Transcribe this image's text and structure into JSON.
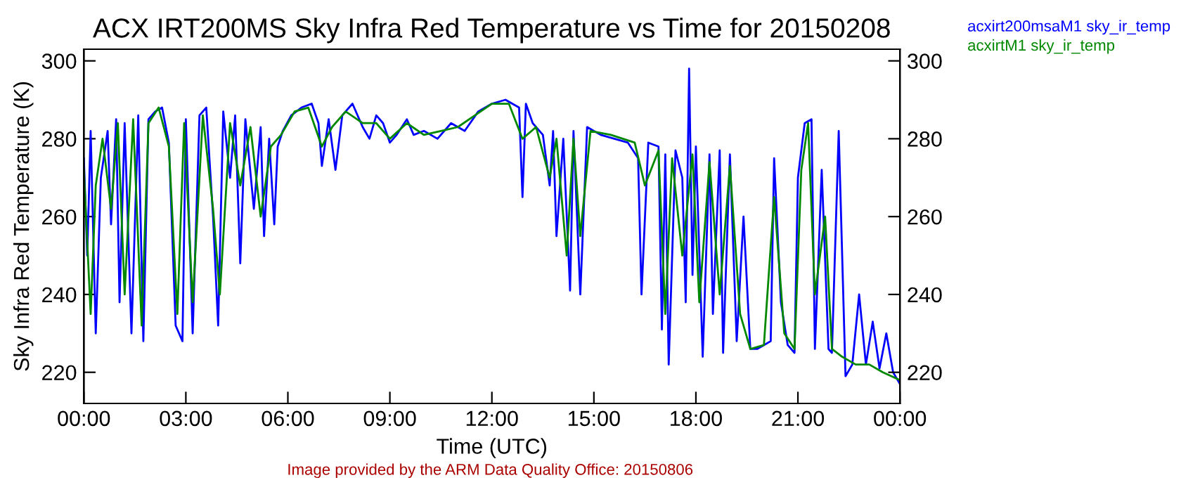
{
  "chart_data": {
    "type": "line",
    "title": "ACX IRT200MS Sky Infra Red Temperature vs Time for 20150208",
    "xlabel": "Time (UTC)",
    "ylabel": "Sky Infra Red Temperature (K)",
    "annotations": [
      "Image provided by the ARM Data Quality Office: 20150806"
    ],
    "xlim": [
      0,
      24
    ],
    "xticks": [
      {
        "value": 0,
        "label": "00:00"
      },
      {
        "value": 3,
        "label": "03:00"
      },
      {
        "value": 6,
        "label": "06:00"
      },
      {
        "value": 9,
        "label": "09:00"
      },
      {
        "value": 12,
        "label": "12:00"
      },
      {
        "value": 15,
        "label": "15:00"
      },
      {
        "value": 18,
        "label": "18:00"
      },
      {
        "value": 21,
        "label": "21:00"
      },
      {
        "value": 24,
        "label": "00:00"
      }
    ],
    "ylim": [
      212,
      303
    ],
    "yticks": [
      220,
      240,
      260,
      280,
      300
    ],
    "y2lim": [
      212,
      303
    ],
    "y2ticks": [
      220,
      240,
      260,
      280,
      300
    ],
    "grid": false,
    "legend": "top right",
    "series": [
      {
        "name": "acxirt200msaM1 sky_ir_temp",
        "color": "#0000ff",
        "x": [
          0.0,
          0.1,
          0.2,
          0.35,
          0.5,
          0.7,
          0.8,
          0.95,
          1.05,
          1.2,
          1.4,
          1.6,
          1.75,
          1.9,
          2.1,
          2.3,
          2.5,
          2.7,
          2.9,
          3.0,
          3.2,
          3.4,
          3.6,
          3.8,
          3.95,
          4.1,
          4.3,
          4.45,
          4.6,
          4.75,
          5.0,
          5.2,
          5.3,
          5.45,
          5.6,
          5.7,
          5.85,
          6.1,
          6.4,
          6.7,
          6.9,
          7.0,
          7.2,
          7.4,
          7.6,
          7.9,
          8.2,
          8.4,
          8.6,
          8.8,
          9.0,
          9.2,
          9.5,
          9.7,
          10.0,
          10.4,
          10.8,
          11.2,
          11.6,
          12.0,
          12.4,
          12.8,
          12.9,
          13.0,
          13.2,
          13.5,
          13.7,
          13.8,
          13.9,
          14.1,
          14.3,
          14.4,
          14.6,
          14.8,
          15.2,
          15.6,
          16.0,
          16.3,
          16.4,
          16.6,
          16.9,
          17.0,
          17.1,
          17.2,
          17.4,
          17.6,
          17.7,
          17.8,
          17.9,
          18.0,
          18.2,
          18.4,
          18.5,
          18.7,
          18.8,
          19.0,
          19.2,
          19.4,
          19.6,
          19.8,
          20.0,
          20.2,
          20.3,
          20.5,
          20.7,
          20.9,
          21.0,
          21.2,
          21.4,
          21.5,
          21.7,
          21.9,
          22.0,
          22.2,
          22.4,
          22.6,
          22.8,
          23.0,
          23.2,
          23.4,
          23.6,
          23.8,
          24.0
        ],
        "values": [
          275,
          250,
          282,
          230,
          270,
          282,
          258,
          285,
          238,
          284,
          230,
          286,
          228,
          285,
          287,
          288,
          279,
          232,
          228,
          285,
          230,
          286,
          288,
          260,
          232,
          287,
          270,
          286,
          248,
          285,
          262,
          283,
          255,
          280,
          258,
          278,
          282,
          286,
          288,
          289,
          284,
          273,
          285,
          272,
          286,
          289,
          283,
          280,
          286,
          284,
          279,
          281,
          285,
          281,
          282,
          280,
          284,
          282,
          287,
          289,
          290,
          288,
          265,
          289,
          284,
          281,
          268,
          282,
          255,
          280,
          241,
          282,
          240,
          283,
          281,
          280,
          279,
          275,
          240,
          279,
          278,
          231,
          276,
          222,
          277,
          270,
          238,
          298,
          245,
          278,
          224,
          276,
          235,
          277,
          225,
          276,
          228,
          260,
          226,
          226,
          227,
          228,
          275,
          238,
          227,
          225,
          270,
          284,
          285,
          226,
          272,
          226,
          225,
          282,
          219,
          222,
          240,
          222,
          233,
          221,
          230,
          220,
          217
        ]
      },
      {
        "name": "acxirtM1 sky_ir_temp",
        "color": "#008800",
        "x": [
          0.0,
          0.2,
          0.35,
          0.55,
          0.8,
          1.0,
          1.2,
          1.45,
          1.7,
          1.9,
          2.2,
          2.5,
          2.75,
          2.95,
          3.2,
          3.5,
          3.8,
          4.0,
          4.3,
          4.6,
          4.9,
          5.2,
          5.5,
          5.8,
          6.2,
          6.6,
          7.0,
          7.3,
          7.7,
          8.2,
          8.6,
          9.0,
          9.5,
          10.0,
          10.5,
          11.0,
          11.5,
          12.0,
          12.5,
          12.9,
          13.3,
          13.7,
          13.9,
          14.2,
          14.4,
          14.6,
          14.9,
          15.5,
          16.2,
          16.5,
          16.9,
          17.1,
          17.3,
          17.6,
          17.9,
          18.1,
          18.4,
          18.7,
          19.0,
          19.3,
          19.6,
          20.0,
          20.3,
          20.6,
          20.9,
          21.1,
          21.3,
          21.5,
          21.8,
          22.0,
          22.3,
          22.7,
          23.1,
          23.5,
          24.0
        ],
        "values": [
          272,
          235,
          268,
          280,
          262,
          284,
          240,
          285,
          232,
          284,
          288,
          278,
          235,
          284,
          238,
          286,
          262,
          240,
          284,
          268,
          283,
          260,
          278,
          281,
          287,
          288,
          278,
          283,
          287,
          284,
          284,
          280,
          284,
          281,
          282,
          283,
          286,
          289,
          289,
          280,
          283,
          270,
          280,
          250,
          280,
          255,
          282,
          281,
          279,
          268,
          277,
          235,
          275,
          250,
          276,
          238,
          274,
          240,
          273,
          235,
          226,
          227,
          265,
          230,
          226,
          272,
          284,
          240,
          260,
          226,
          224,
          222,
          222,
          220,
          218
        ]
      }
    ]
  }
}
